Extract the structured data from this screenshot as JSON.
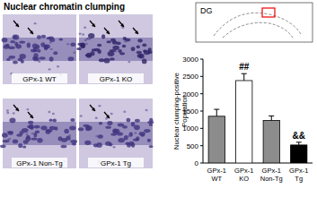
{
  "panel_title": "Nuclear chromatin clumping",
  "panels": [
    "GPx-1 WT",
    "GPx-1 KO",
    "GPx-1 Non-Tg",
    "GPx-1 Tg"
  ],
  "inset_label": "DG",
  "chart_data": {
    "type": "bar",
    "y_label": "Nuclear clumping-positive Population",
    "categories": [
      "GPx-1 WT",
      "GPx-1 KO",
      "GPx-1 Non-Tg",
      "GPx-1 Tg"
    ],
    "values": [
      1350,
      2380,
      1230,
      520
    ],
    "errors": [
      200,
      200,
      130,
      80
    ],
    "annotations": [
      null,
      "##",
      null,
      "&&"
    ],
    "colors": [
      "#8c8c8c",
      "#ffffff",
      "#8c8c8c",
      "#000000"
    ],
    "ylim": [
      0,
      3000
    ],
    "yticks": [
      0,
      500,
      1000,
      1500,
      2000,
      2500,
      3000
    ],
    "grid": false
  }
}
